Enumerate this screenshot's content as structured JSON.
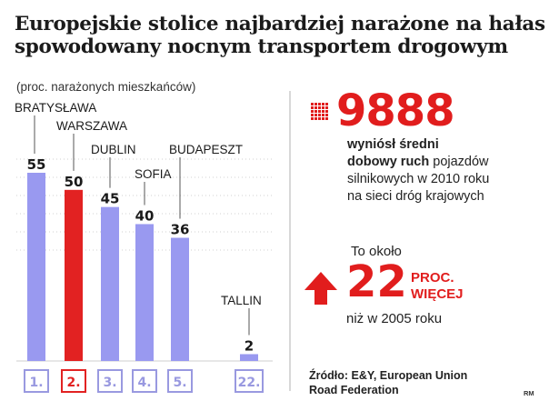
{
  "header": {
    "title": "Europejskie stolice najbardziej narażone na hałas spowodowany nocnym transportem drogowym",
    "subtitle": "(proc. narażonych mieszkańców)"
  },
  "chart_data": {
    "type": "bar",
    "categories": [
      "BRATYSŁAWA",
      "WARSZAWA",
      "DUBLIN",
      "SOFIA",
      "BUDAPESZT",
      "TALLIN"
    ],
    "ranks": [
      "1.",
      "2.",
      "3.",
      "4.",
      "5.",
      "22."
    ],
    "values": [
      55,
      50,
      45,
      40,
      36,
      2
    ],
    "highlight_index": 1,
    "ylim": [
      0,
      55
    ],
    "colors": {
      "bar": "#9999f0",
      "highlight": "#e22222",
      "frame": "#9999e0"
    }
  },
  "stats": {
    "daily_traffic": {
      "value": "9888",
      "line1": "wyniósł średni",
      "line2_bold": "dobowy ruch",
      "line2_rest": " pojazdów",
      "line3": "silnikowych w 2010 roku",
      "line4": "na sieci dróg krajowych"
    },
    "increase": {
      "prefix": "To około",
      "value": "22",
      "unit_line1": "PROC.",
      "unit_line2": "WIĘCEJ",
      "suffix": "niż w 2005 roku"
    }
  },
  "source": {
    "line1": "Źródło: E&Y, European Union",
    "line2": "Road Federation"
  },
  "credit": "RM"
}
